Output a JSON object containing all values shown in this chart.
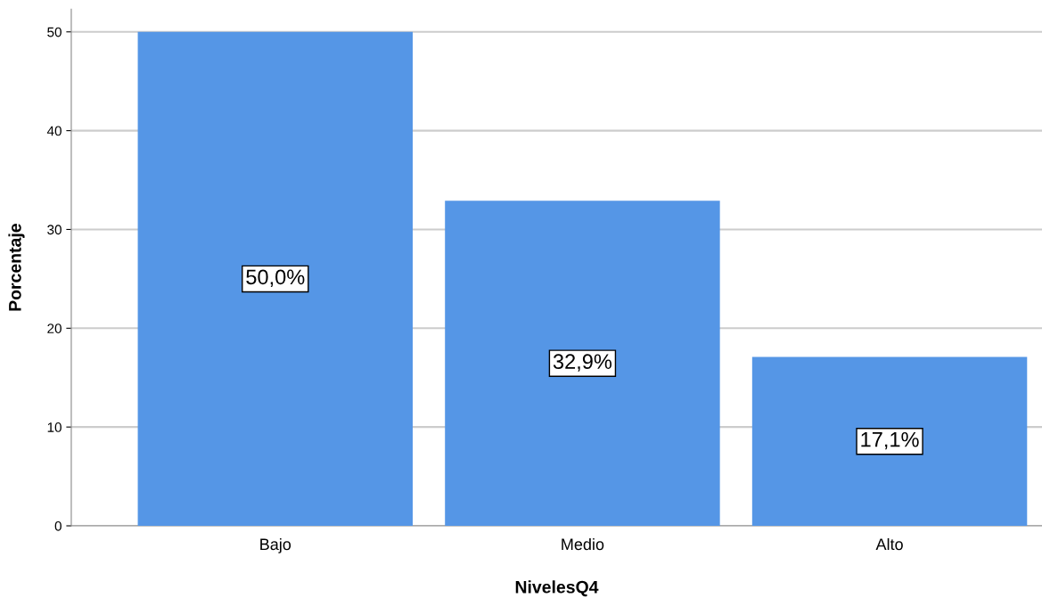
{
  "chart_data": {
    "type": "bar",
    "xlabel": "NivelesQ4",
    "ylabel": "Porcentaje",
    "categories": [
      "Bajo",
      "Medio",
      "Alto"
    ],
    "values": [
      50.0,
      32.9,
      17.1
    ],
    "value_labels": [
      "50,0%",
      "32,9%",
      "17,1%"
    ],
    "color": "#5596e6",
    "ylim": [
      0,
      52.3
    ],
    "yticks": [
      0,
      10,
      20,
      30,
      40,
      50
    ],
    "grid": "y"
  }
}
